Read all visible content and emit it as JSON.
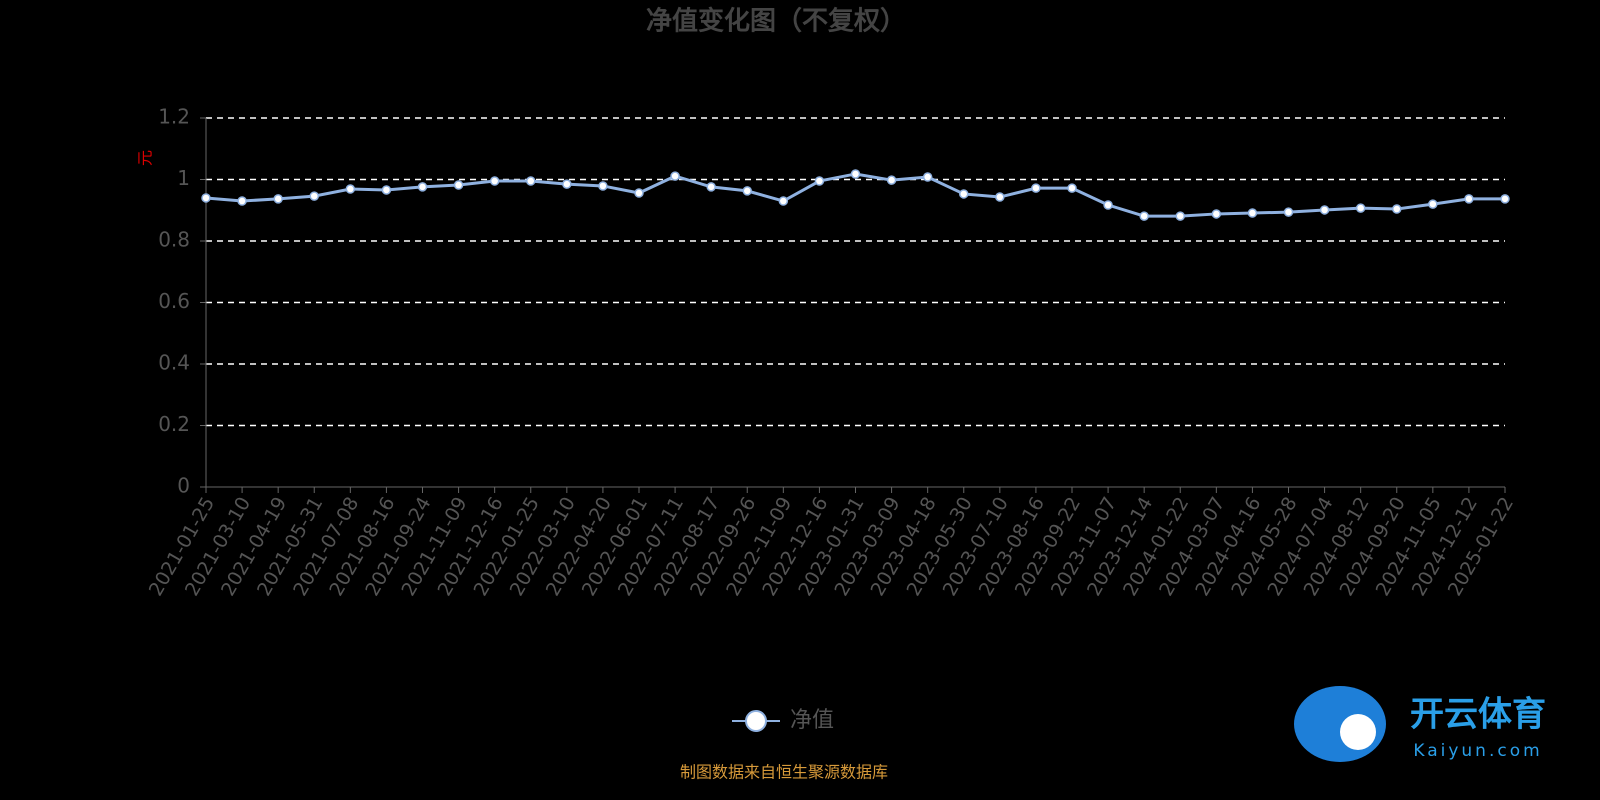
{
  "chart_data": {
    "type": "line",
    "title": "净值变化图（不复权）",
    "y_label": "元",
    "source": "制图数据来自恒生聚源数据库",
    "watermark": {
      "brand": "开云体育",
      "site": "Kaiyun.com"
    },
    "categories": [
      "2021-01-25",
      "2021-03-10",
      "2021-04-19",
      "2021-05-31",
      "2021-07-08",
      "2021-08-16",
      "2021-09-24",
      "2021-11-09",
      "2021-12-16",
      "2022-01-25",
      "2022-03-10",
      "2022-04-20",
      "2022-06-01",
      "2022-07-11",
      "2022-08-17",
      "2022-09-26",
      "2022-11-09",
      "2022-12-16",
      "2023-01-31",
      "2023-03-09",
      "2023-04-18",
      "2023-05-30",
      "2023-07-10",
      "2023-08-16",
      "2023-09-22",
      "2023-11-07",
      "2023-12-14",
      "2024-01-22",
      "2024-03-07",
      "2024-04-16",
      "2024-05-28",
      "2024-07-04",
      "2024-08-12",
      "2024-09-20",
      "2024-11-05",
      "2024-12-12",
      "2025-01-22"
    ],
    "series": [
      {
        "name": "净值",
        "color": "#8fb1e0",
        "values": [
          0.94,
          0.93,
          0.937,
          0.946,
          0.969,
          0.966,
          0.976,
          0.982,
          0.995,
          0.995,
          0.985,
          0.979,
          0.956,
          1.011,
          0.976,
          0.963,
          0.93,
          0.995,
          1.018,
          0.998,
          1.008,
          0.953,
          0.943,
          0.972,
          0.972,
          0.917,
          0.881,
          0.881,
          0.888,
          0.891,
          0.894,
          0.901,
          0.907,
          0.904,
          0.92,
          0.937,
          0.937
        ]
      }
    ],
    "ylim": [
      0,
      1.2
    ],
    "yticks": [
      0,
      0.2,
      0.4,
      0.6,
      0.8,
      1,
      1.2
    ],
    "grid": true
  }
}
